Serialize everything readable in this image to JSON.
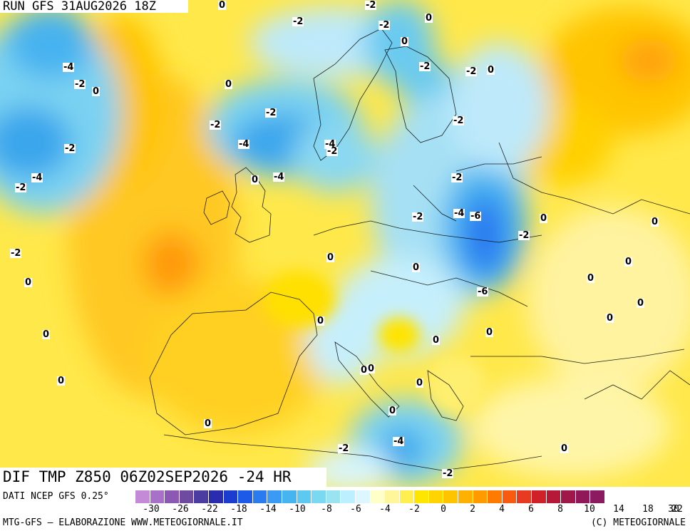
{
  "header": {
    "run_label": "RUN GFS 31AUG2026 18Z"
  },
  "title": {
    "text": "DIF TMP Z850 06Z02SEP2026 -24 HR"
  },
  "footer": {
    "source": "DATI NCEP GFS 0.25°",
    "credit_left": "MTG-GFS – ELABORAZIONE WWW.METEOGIORNALE.IT",
    "credit_right": "(C) METEOGIORNALE"
  },
  "colorbar": {
    "colors": [
      "#c48ad8",
      "#a870c8",
      "#8c58b4",
      "#6e4aa0",
      "#4a3ca0",
      "#2a2cb0",
      "#1c3cd0",
      "#1e5ae8",
      "#2a7af0",
      "#3a9af4",
      "#46b4f0",
      "#5ccaf0",
      "#7ad8f0",
      "#9ae4f2",
      "#bcefff",
      "#dcf7ff",
      "#ffffc8",
      "#fff59a",
      "#fff050",
      "#ffe600",
      "#ffd400",
      "#ffc400",
      "#ffb000",
      "#ff9a00",
      "#ff7a00",
      "#f85a10",
      "#e83a20",
      "#d02028",
      "#b81838",
      "#a01848",
      "#901858",
      "#8c1a60"
    ],
    "tick_labels": [
      "-30",
      "-26",
      "-22",
      "-18",
      "-14",
      "-10",
      "-8",
      "-6",
      "-4",
      "-2",
      "0",
      "2",
      "4",
      "6",
      "8",
      "10",
      "14",
      "18",
      "22",
      "30"
    ]
  },
  "map_labels": [
    {
      "t": "0"
    },
    {
      "t": "-2"
    },
    {
      "t": "-2"
    },
    {
      "t": "0"
    },
    {
      "t": "-2"
    },
    {
      "t": "0"
    },
    {
      "t": "-4"
    },
    {
      "t": "-2"
    },
    {
      "t": "0"
    },
    {
      "t": "-2"
    },
    {
      "t": "-2"
    },
    {
      "t": "0"
    },
    {
      "t": "0"
    },
    {
      "t": "-2"
    },
    {
      "t": "-2"
    },
    {
      "t": "-4"
    },
    {
      "t": "-2"
    },
    {
      "t": "-4"
    },
    {
      "t": "-2"
    },
    {
      "t": "-2"
    },
    {
      "t": "-4"
    },
    {
      "t": "-2"
    },
    {
      "t": "0"
    },
    {
      "t": "-4"
    },
    {
      "t": "-2"
    },
    {
      "t": "-2"
    },
    {
      "t": "-4"
    },
    {
      "t": "-6"
    },
    {
      "t": "0"
    },
    {
      "t": "0"
    },
    {
      "t": "-2"
    },
    {
      "t": "-2"
    },
    {
      "t": "0"
    },
    {
      "t": "0"
    },
    {
      "t": "0"
    },
    {
      "t": "0"
    },
    {
      "t": "0"
    },
    {
      "t": "-6"
    },
    {
      "t": "0"
    },
    {
      "t": "0"
    },
    {
      "t": "0"
    },
    {
      "t": "0"
    },
    {
      "t": "0"
    },
    {
      "t": "0"
    },
    {
      "t": "0"
    },
    {
      "t": "0"
    },
    {
      "t": "0"
    },
    {
      "t": "0"
    },
    {
      "t": "-2"
    },
    {
      "t": "-4"
    },
    {
      "t": "0"
    },
    {
      "t": "0"
    },
    {
      "t": "-2"
    },
    {
      "t": "0"
    }
  ]
}
